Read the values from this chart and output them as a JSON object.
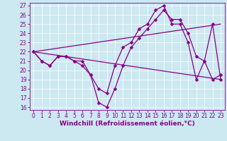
{
  "xlabel": "Windchill (Refroidissement éolien,°C)",
  "xlim": [
    -0.5,
    23.5
  ],
  "ylim": [
    15.7,
    27.3
  ],
  "xticks": [
    0,
    1,
    2,
    3,
    4,
    5,
    6,
    7,
    8,
    9,
    10,
    11,
    12,
    13,
    14,
    15,
    16,
    17,
    18,
    19,
    20,
    21,
    22,
    23
  ],
  "yticks": [
    16,
    17,
    18,
    19,
    20,
    21,
    22,
    23,
    24,
    25,
    26,
    27
  ],
  "bg_color": "#cce8f0",
  "line_color": "#880088",
  "line1_x": [
    0,
    1,
    2,
    3,
    4,
    5,
    6,
    7,
    8,
    9,
    10,
    11,
    12,
    13,
    14,
    15,
    16,
    17,
    18,
    19,
    20,
    21,
    22,
    23
  ],
  "line1_y": [
    22,
    21,
    20.5,
    21.5,
    21.5,
    21,
    21,
    19.5,
    18,
    17.5,
    20.5,
    22.5,
    23,
    24.5,
    25,
    26.5,
    27,
    25,
    25,
    23,
    19,
    21,
    25,
    19
  ],
  "line2_x": [
    0,
    1,
    2,
    3,
    4,
    5,
    6,
    7,
    8,
    9,
    10,
    11,
    12,
    13,
    14,
    15,
    16,
    17,
    18,
    19,
    20,
    21,
    22,
    23
  ],
  "line2_y": [
    22,
    21,
    20.5,
    21.5,
    21.5,
    21,
    20.5,
    19.5,
    16.5,
    16,
    18,
    20.5,
    22.5,
    23.5,
    24.5,
    25.5,
    26.5,
    25.5,
    25.5,
    24,
    21.5,
    21,
    19,
    19.5
  ],
  "line3_x": [
    0,
    23
  ],
  "line3_y": [
    22,
    19
  ],
  "line4_x": [
    0,
    23
  ],
  "line4_y": [
    22,
    25
  ],
  "grid_color": "#ffffff",
  "tick_fontsize": 5.5,
  "xlabel_fontsize": 6.5
}
